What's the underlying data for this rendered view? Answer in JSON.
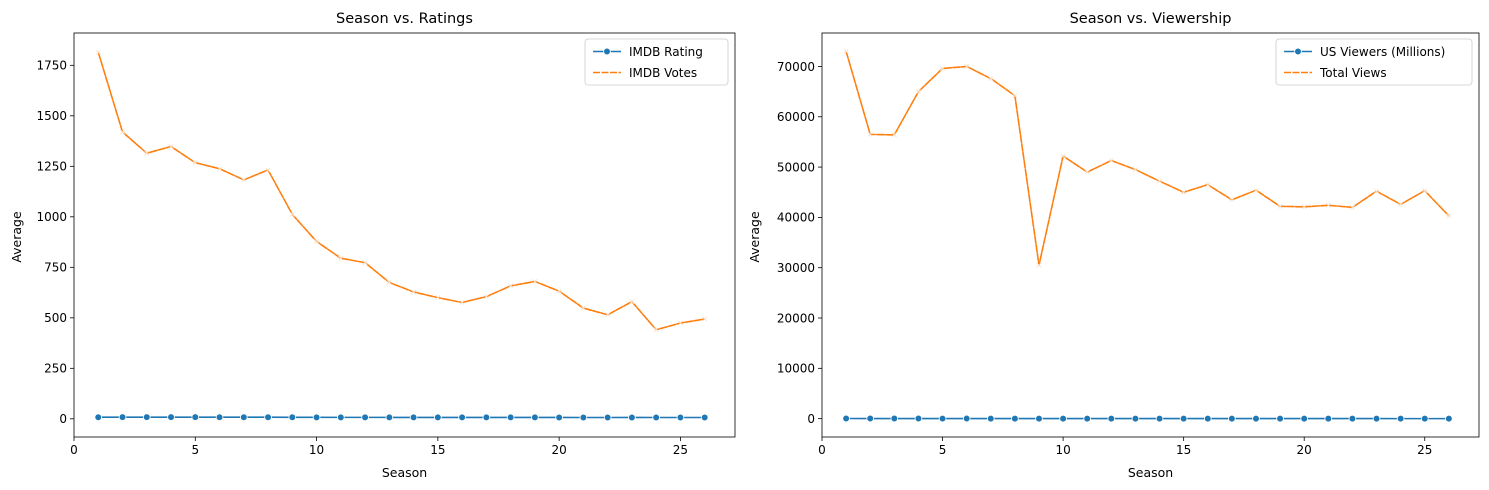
{
  "chart_data": [
    {
      "type": "line",
      "title": "Season vs. Ratings",
      "xlabel": "Season",
      "ylabel": "Average",
      "xlim": [
        0,
        27.25
      ],
      "ylim": [
        -90,
        1910
      ],
      "xticks": [
        0,
        5,
        10,
        15,
        20,
        25
      ],
      "yticks": [
        0,
        250,
        500,
        750,
        1000,
        1250,
        1500,
        1750
      ],
      "grid": false,
      "legend": "top-right",
      "x": [
        1,
        2,
        3,
        4,
        5,
        6,
        7,
        8,
        9,
        10,
        11,
        12,
        13,
        14,
        15,
        16,
        17,
        18,
        19,
        20,
        21,
        22,
        23,
        24,
        25,
        26
      ],
      "series": [
        {
          "name": "IMDB Rating",
          "color": "#1f77b4",
          "marker": "circle",
          "dashes": false,
          "values": [
            8.0,
            8.1,
            8.1,
            8.1,
            8.1,
            8.0,
            7.9,
            7.9,
            7.6,
            7.4,
            7.2,
            7.2,
            7.1,
            7.0,
            7.0,
            6.9,
            6.9,
            6.9,
            6.9,
            6.8,
            6.6,
            6.6,
            6.7,
            6.5,
            6.6,
            6.6
          ]
        },
        {
          "name": "IMDB Votes",
          "color": "#ff7f0e",
          "marker": "x",
          "dashes": true,
          "values": [
            1815,
            1420,
            1315,
            1348,
            1268,
            1238,
            1183,
            1232,
            1012,
            878,
            795,
            773,
            675,
            628,
            600,
            576,
            605,
            658,
            680,
            632,
            548,
            515,
            580,
            441,
            474,
            494
          ]
        }
      ]
    },
    {
      "type": "line",
      "title": "Season vs. Viewership",
      "xlabel": "Season",
      "ylabel": "Average",
      "xlim": [
        0,
        27.25
      ],
      "ylim": [
        -3650,
        76650
      ],
      "xticks": [
        0,
        5,
        10,
        15,
        20,
        25
      ],
      "yticks": [
        0,
        10000,
        20000,
        30000,
        40000,
        50000,
        60000,
        70000
      ],
      "grid": false,
      "legend": "top-right",
      "x": [
        1,
        2,
        3,
        4,
        5,
        6,
        7,
        8,
        9,
        10,
        11,
        12,
        13,
        14,
        15,
        16,
        17,
        18,
        19,
        20,
        21,
        22,
        23,
        24,
        25,
        26
      ],
      "series": [
        {
          "name": "US Viewers (Millions)",
          "color": "#1f77b4",
          "marker": "circle",
          "dashes": false,
          "values": [
            27.8,
            20.5,
            18.4,
            18.6,
            14.6,
            15.1,
            13.2,
            12.3,
            11.1,
            10.2,
            8.9,
            9.1,
            9.0,
            8.2,
            7.4,
            7.9,
            6.8,
            6.9,
            6.1,
            5.5,
            5.3,
            4.9,
            4.8,
            4.1,
            3.8,
            3.2
          ]
        },
        {
          "name": "Total Views",
          "color": "#ff7f0e",
          "marker": "x",
          "dashes": true,
          "values": [
            73000,
            56500,
            56400,
            65000,
            69600,
            70000,
            67600,
            64200,
            30500,
            52200,
            49000,
            51300,
            49500,
            47200,
            45000,
            46500,
            43500,
            45400,
            42200,
            42100,
            42400,
            42000,
            45200,
            42600,
            45300,
            40300
          ]
        }
      ]
    }
  ]
}
